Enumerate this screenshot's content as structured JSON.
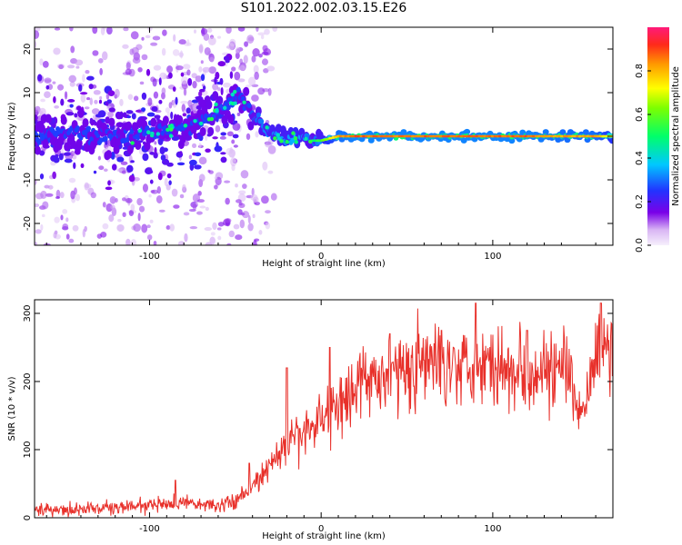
{
  "title": "S101.2022.002.03.15.E26",
  "colors": {
    "snr_line": "#e8302a",
    "spectrogram_background": "#ffffff",
    "frame": "#000000"
  },
  "chart_data": [
    {
      "type": "heatmap",
      "title": "",
      "xlabel": "Height of straight line (km)",
      "ylabel": "Frequency (Hz)",
      "xlim": [
        -167,
        170
      ],
      "ylim": [
        -25,
        25
      ],
      "xticks": [
        -100,
        0,
        100
      ],
      "xtick_labels": [
        "-100",
        "0",
        "100"
      ],
      "yticks": [
        -20,
        -10,
        0,
        10,
        20
      ],
      "ytick_labels": [
        "-20",
        "-10",
        "0",
        "10",
        "20"
      ],
      "colorbar": {
        "label": "Normalized spectral amplitude",
        "range": [
          0,
          1
        ],
        "ticks": [
          0.0,
          0.2,
          0.4,
          0.6,
          0.8
        ],
        "tick_labels": [
          "0.0",
          "0.2",
          "0.4",
          "0.6",
          "0.8"
        ],
        "colormap": "gist_rainbow_r"
      },
      "ridge": {
        "x": [
          -167,
          -150,
          -130,
          -110,
          -95,
          -80,
          -70,
          -60,
          -52,
          -48,
          -45,
          -40,
          -35,
          -30,
          -25,
          -20,
          -15,
          -10,
          -5,
          0,
          10,
          20,
          40,
          60,
          80,
          100,
          120,
          140,
          160,
          170
        ],
        "y": [
          0,
          1,
          0,
          0,
          1,
          2,
          4,
          6,
          8,
          9,
          8,
          5,
          3,
          1,
          0,
          -1,
          0,
          0,
          -1,
          -1,
          0,
          0,
          0,
          0,
          0,
          0,
          0,
          0,
          0,
          0
        ],
        "amplitude": [
          0.3,
          0.3,
          0.3,
          0.35,
          0.4,
          0.45,
          0.45,
          0.5,
          0.45,
          0.4,
          0.45,
          0.5,
          0.55,
          0.6,
          0.6,
          0.6,
          0.65,
          0.6,
          0.5,
          0.6,
          0.85,
          0.9,
          0.9,
          0.9,
          0.9,
          0.9,
          0.9,
          0.85,
          0.85,
          0.7
        ]
      }
    },
    {
      "type": "line",
      "title": "",
      "xlabel": "Height of straight line (km)",
      "ylabel": "SNR (10 * v/v)",
      "xlim": [
        -167,
        170
      ],
      "ylim": [
        0,
        320
      ],
      "xticks": [
        -100,
        0,
        100
      ],
      "xtick_labels": [
        "-100",
        "0",
        "100"
      ],
      "yticks": [
        0,
        100,
        200,
        300
      ],
      "ytick_labels": [
        "0",
        "100",
        "200",
        "300"
      ],
      "series": [
        {
          "x": [
            -167,
            -150,
            -130,
            -110,
            -100,
            -90,
            -80,
            -70,
            -60,
            -50,
            -40,
            -30,
            -20,
            -10,
            0,
            10,
            20,
            30,
            40,
            50,
            60,
            70,
            80,
            90,
            100,
            110,
            120,
            130,
            140,
            145,
            150,
            155,
            160,
            165,
            170
          ],
          "values": [
            12,
            12,
            14,
            16,
            18,
            20,
            22,
            20,
            18,
            25,
            45,
            75,
            105,
            125,
            145,
            170,
            190,
            205,
            215,
            220,
            225,
            228,
            232,
            230,
            225,
            222,
            220,
            218,
            215,
            200,
            150,
            175,
            230,
            250,
            245
          ],
          "spike_peaks": [
            [
              -85,
              55
            ],
            [
              -42,
              80
            ],
            [
              -20,
              220
            ],
            [
              5,
              250
            ],
            [
              40,
              270
            ],
            [
              70,
              275
            ],
            [
              90,
              315
            ],
            [
              120,
              275
            ],
            [
              163,
              315
            ]
          ]
        }
      ]
    }
  ]
}
